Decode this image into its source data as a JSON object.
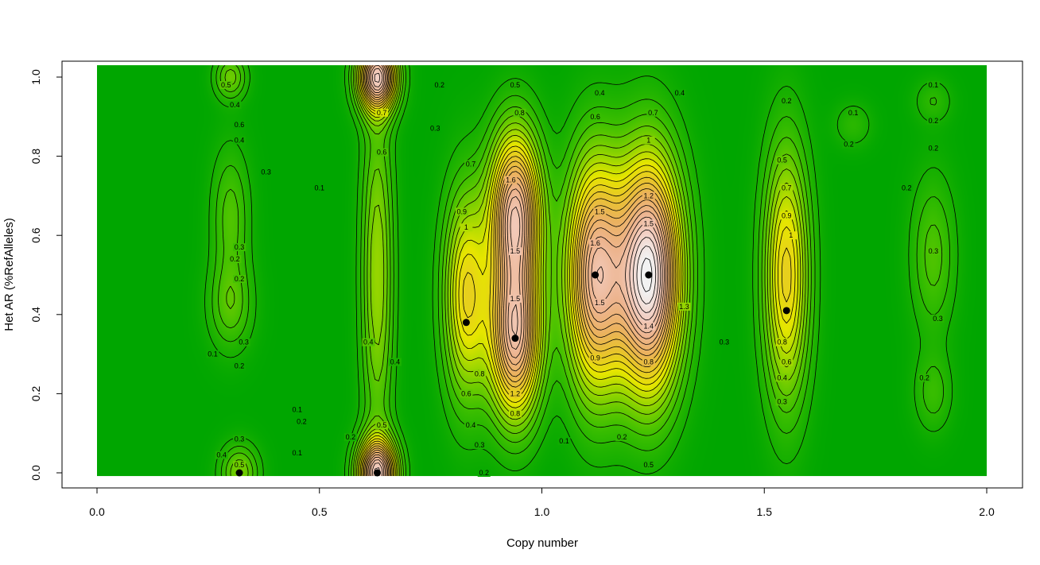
{
  "chart_data": {
    "type": "heatmap",
    "subtype": "filled-contour-density",
    "title": "",
    "xlabel": "Copy number",
    "ylabel": "Het AR (%RefAlleles)",
    "xlim": [
      -0.05,
      2.05
    ],
    "ylim": [
      -0.035,
      1.035
    ],
    "x_ticks": [
      "0.0",
      "0.5",
      "1.0",
      "1.5",
      "2.0"
    ],
    "y_ticks": [
      "0.0",
      "0.2",
      "0.4",
      "0.6",
      "0.8",
      "1.0"
    ],
    "grid": false,
    "legend": "none",
    "color_scale": [
      "#00a600",
      "#3cbf00",
      "#8fd400",
      "#e6e600",
      "#e8c32e",
      "#ebb25e",
      "#edb48e",
      "#f2cdc0",
      "#f2f2f2"
    ],
    "contour_levels": [
      0.1,
      0.2,
      0.3,
      0.4,
      0.5,
      0.6,
      0.7,
      0.8,
      0.9,
      1.0,
      1.1,
      1.2,
      1.3,
      1.4,
      1.5,
      1.6,
      1.7,
      1.8,
      1.9,
      2.0,
      2.1,
      2.2,
      2.3
    ],
    "density_peaks": [
      {
        "x": 0.32,
        "y": 0.0,
        "height": 0.5
      },
      {
        "x": 0.3,
        "y": 1.0,
        "height": 0.45
      },
      {
        "x": 0.63,
        "y": 0.0,
        "height": 1.9
      },
      {
        "x": 0.63,
        "y": 1.0,
        "height": 1.9
      },
      {
        "x": 0.63,
        "y": 0.5,
        "height": 0.6
      },
      {
        "x": 0.83,
        "y": 0.45,
        "height": 1.0
      },
      {
        "x": 0.94,
        "y": 0.34,
        "height": 1.75
      },
      {
        "x": 0.94,
        "y": 0.66,
        "height": 1.8
      },
      {
        "x": 1.12,
        "y": 0.5,
        "height": 1.75
      },
      {
        "x": 1.24,
        "y": 0.5,
        "height": 2.3
      },
      {
        "x": 1.55,
        "y": 0.5,
        "height": 1.05
      },
      {
        "x": 1.7,
        "y": 0.88,
        "height": 0.2
      },
      {
        "x": 1.88,
        "y": 0.94,
        "height": 0.2
      },
      {
        "x": 1.88,
        "y": 0.55,
        "height": 0.35
      },
      {
        "x": 1.88,
        "y": 0.2,
        "height": 0.25
      },
      {
        "x": 0.3,
        "y": 0.42,
        "height": 0.35
      },
      {
        "x": 0.3,
        "y": 0.65,
        "height": 0.35
      }
    ],
    "points": [
      {
        "x": 0.32,
        "y": 0.0
      },
      {
        "x": 0.63,
        "y": 0.0
      },
      {
        "x": 0.83,
        "y": 0.38
      },
      {
        "x": 0.94,
        "y": 0.34
      },
      {
        "x": 1.12,
        "y": 0.5
      },
      {
        "x": 1.24,
        "y": 0.5
      },
      {
        "x": 1.55,
        "y": 0.41
      }
    ],
    "contour_labels": [
      {
        "x": 0.29,
        "y": 0.98,
        "text": "0.5"
      },
      {
        "x": 0.31,
        "y": 0.93,
        "text": "0.4"
      },
      {
        "x": 0.32,
        "y": 0.88,
        "text": "0.6"
      },
      {
        "x": 0.32,
        "y": 0.84,
        "text": "0.4"
      },
      {
        "x": 0.38,
        "y": 0.76,
        "text": "0.3"
      },
      {
        "x": 0.5,
        "y": 0.72,
        "text": "0.1"
      },
      {
        "x": 0.32,
        "y": 0.57,
        "text": "0.3"
      },
      {
        "x": 0.31,
        "y": 0.54,
        "text": "0.2"
      },
      {
        "x": 0.32,
        "y": 0.49,
        "text": "0.2"
      },
      {
        "x": 0.33,
        "y": 0.33,
        "text": "0.3"
      },
      {
        "x": 0.26,
        "y": 0.3,
        "text": "0.1"
      },
      {
        "x": 0.32,
        "y": 0.27,
        "text": "0.2"
      },
      {
        "x": 0.45,
        "y": 0.16,
        "text": "0.1"
      },
      {
        "x": 0.46,
        "y": 0.13,
        "text": "0.2"
      },
      {
        "x": 0.32,
        "y": 0.085,
        "text": "0.3"
      },
      {
        "x": 0.45,
        "y": 0.05,
        "text": "0.1"
      },
      {
        "x": 0.28,
        "y": 0.045,
        "text": "0.4"
      },
      {
        "x": 0.32,
        "y": 0.02,
        "text": "0.5"
      },
      {
        "x": 0.64,
        "y": 0.91,
        "text": "0.7"
      },
      {
        "x": 0.64,
        "y": 0.81,
        "text": "0.6"
      },
      {
        "x": 0.77,
        "y": 0.98,
        "text": "0.2"
      },
      {
        "x": 0.76,
        "y": 0.87,
        "text": "0.3"
      },
      {
        "x": 0.61,
        "y": 0.33,
        "text": "0.4"
      },
      {
        "x": 0.67,
        "y": 0.28,
        "text": "0.4"
      },
      {
        "x": 0.64,
        "y": 0.12,
        "text": "0.5"
      },
      {
        "x": 0.57,
        "y": 0.09,
        "text": "0.2"
      },
      {
        "x": 0.84,
        "y": 0.78,
        "text": "0.7"
      },
      {
        "x": 0.82,
        "y": 0.66,
        "text": "0.9"
      },
      {
        "x": 0.83,
        "y": 0.62,
        "text": "1"
      },
      {
        "x": 0.86,
        "y": 0.25,
        "text": "0.8"
      },
      {
        "x": 0.83,
        "y": 0.2,
        "text": "0.6"
      },
      {
        "x": 0.84,
        "y": 0.12,
        "text": "0.4"
      },
      {
        "x": 0.86,
        "y": 0.07,
        "text": "0.3"
      },
      {
        "x": 0.87,
        "y": 0.0,
        "text": "0.2"
      },
      {
        "x": 0.94,
        "y": 0.98,
        "text": "0.5"
      },
      {
        "x": 0.95,
        "y": 0.91,
        "text": "0.8"
      },
      {
        "x": 0.93,
        "y": 0.74,
        "text": "1.6"
      },
      {
        "x": 0.94,
        "y": 0.56,
        "text": "1.5"
      },
      {
        "x": 0.94,
        "y": 0.44,
        "text": "1.5"
      },
      {
        "x": 0.94,
        "y": 0.2,
        "text": "1.2"
      },
      {
        "x": 0.94,
        "y": 0.15,
        "text": "0.8"
      },
      {
        "x": 1.13,
        "y": 0.96,
        "text": "0.4"
      },
      {
        "x": 1.12,
        "y": 0.9,
        "text": "0.6"
      },
      {
        "x": 1.13,
        "y": 0.66,
        "text": "1.5"
      },
      {
        "x": 1.12,
        "y": 0.58,
        "text": "1.6"
      },
      {
        "x": 1.13,
        "y": 0.43,
        "text": "1.5"
      },
      {
        "x": 1.12,
        "y": 0.29,
        "text": "0.9"
      },
      {
        "x": 1.18,
        "y": 0.09,
        "text": "0.2"
      },
      {
        "x": 1.05,
        "y": 0.08,
        "text": "0.1"
      },
      {
        "x": 1.25,
        "y": 0.91,
        "text": "0.7"
      },
      {
        "x": 1.24,
        "y": 0.84,
        "text": "1"
      },
      {
        "x": 1.24,
        "y": 0.7,
        "text": "1.2"
      },
      {
        "x": 1.24,
        "y": 0.63,
        "text": "1.5"
      },
      {
        "x": 1.24,
        "y": 0.37,
        "text": "1.4"
      },
      {
        "x": 1.24,
        "y": 0.28,
        "text": "0.8"
      },
      {
        "x": 1.32,
        "y": 0.42,
        "text": "1.3"
      },
      {
        "x": 1.41,
        "y": 0.33,
        "text": "0.3"
      },
      {
        "x": 1.24,
        "y": 0.02,
        "text": "0.5"
      },
      {
        "x": 1.31,
        "y": 0.96,
        "text": "0.4"
      },
      {
        "x": 1.55,
        "y": 0.94,
        "text": "0.2"
      },
      {
        "x": 1.54,
        "y": 0.79,
        "text": "0.5"
      },
      {
        "x": 1.55,
        "y": 0.72,
        "text": "0.7"
      },
      {
        "x": 1.55,
        "y": 0.65,
        "text": "0.9"
      },
      {
        "x": 1.56,
        "y": 0.6,
        "text": "1"
      },
      {
        "x": 1.54,
        "y": 0.33,
        "text": "0.8"
      },
      {
        "x": 1.55,
        "y": 0.28,
        "text": "0.6"
      },
      {
        "x": 1.54,
        "y": 0.24,
        "text": "0.4"
      },
      {
        "x": 1.54,
        "y": 0.18,
        "text": "0.3"
      },
      {
        "x": 1.7,
        "y": 0.91,
        "text": "0.1"
      },
      {
        "x": 1.69,
        "y": 0.83,
        "text": "0.2"
      },
      {
        "x": 1.88,
        "y": 0.98,
        "text": "0.1"
      },
      {
        "x": 1.88,
        "y": 0.89,
        "text": "0.2"
      },
      {
        "x": 1.88,
        "y": 0.82,
        "text": "0.2"
      },
      {
        "x": 1.82,
        "y": 0.72,
        "text": "0.2"
      },
      {
        "x": 1.88,
        "y": 0.56,
        "text": "0.3"
      },
      {
        "x": 1.89,
        "y": 0.39,
        "text": "0.3"
      },
      {
        "x": 1.86,
        "y": 0.24,
        "text": "0.2"
      }
    ]
  }
}
